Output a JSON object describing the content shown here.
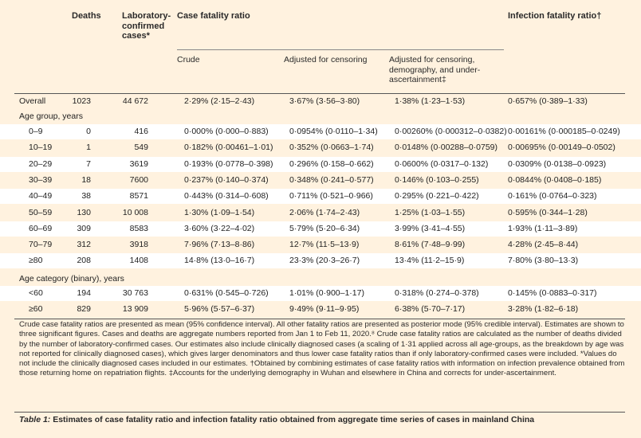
{
  "header": {
    "deaths": "Deaths",
    "lab_cases_1": "Laboratory-",
    "lab_cases_2": "confirmed",
    "lab_cases_3": "cases*",
    "cfr": "Case fatality ratio",
    "ifr": "Infection fatality ratio†",
    "crude": "Crude",
    "adj_censor": "Adjusted for censoring",
    "adj_full_1": "Adjusted for censoring,",
    "adj_full_2": "demography, and under-",
    "adj_full_3": "ascertainment‡"
  },
  "overall": {
    "label": "Overall",
    "deaths": "1023",
    "cases": "44 672",
    "crude": "2·29% (2·15–2·43)",
    "adj": "3·67% (3·56–3·80)",
    "adj_full": "1·38% (1·23–1·53)",
    "ifr": "0·657% (0·389–1·33)"
  },
  "age_group_heading": "Age group, years",
  "age_rows": [
    {
      "label": "0–9",
      "deaths": "0",
      "cases": "416",
      "crude": "0·000% (0·000–0·883)",
      "adj": "0·0954% (0·0110–1·34)",
      "adj_full": "0·00260% (0·000312–0·0382)",
      "ifr": "0·00161% (0·000185–0·0249)"
    },
    {
      "label": "10–19",
      "deaths": "1",
      "cases": "549",
      "crude": "0·182% (0·00461–1·01)",
      "adj": "0·352% (0·0663–1·74)",
      "adj_full": "0·0148% (0·00288–0·0759)",
      "ifr": "0·00695% (0·00149–0·0502)"
    },
    {
      "label": "20–29",
      "deaths": "7",
      "cases": "3619",
      "crude": "0·193% (0·0778–0·398)",
      "adj": "0·296% (0·158–0·662)",
      "adj_full": "0·0600% (0·0317–0·132)",
      "ifr": "0·0309% (0·0138–0·0923)"
    },
    {
      "label": "30–39",
      "deaths": "18",
      "cases": "7600",
      "crude": "0·237% (0·140–0·374)",
      "adj": "0·348% (0·241–0·577)",
      "adj_full": "0·146% (0·103–0·255)",
      "ifr": "0·0844% (0·0408–0·185)"
    },
    {
      "label": "40–49",
      "deaths": "38",
      "cases": "8571",
      "crude": "0·443% (0·314–0·608)",
      "adj": "0·711% (0·521–0·966)",
      "adj_full": "0·295% (0·221–0·422)",
      "ifr": "0·161% (0·0764–0·323)"
    },
    {
      "label": "50–59",
      "deaths": "130",
      "cases": "10 008",
      "crude": "1·30% (1·09–1·54)",
      "adj": "2·06% (1·74–2·43)",
      "adj_full": "1·25% (1·03–1·55)",
      "ifr": "0·595% (0·344–1·28)"
    },
    {
      "label": "60–69",
      "deaths": "309",
      "cases": "8583",
      "crude": "3·60% (3·22–4·02)",
      "adj": "5·79% (5·20–6·34)",
      "adj_full": "3·99% (3·41–4·55)",
      "ifr": "1·93% (1·11–3·89)"
    },
    {
      "label": "70–79",
      "deaths": "312",
      "cases": "3918",
      "crude": "7·96% (7·13–8·86)",
      "adj": "12·7% (11·5–13·9)",
      "adj_full": "8·61% (7·48–9·99)",
      "ifr": "4·28% (2·45–8·44)"
    },
    {
      "label": "≥80",
      "deaths": "208",
      "cases": "1408",
      "crude": "14·8% (13·0–16·7)",
      "adj": "23·3% (20·3–26·7)",
      "adj_full": "13·4% (11·2–15·9)",
      "ifr": "7·80% (3·80–13·3)"
    }
  ],
  "binary_heading": "Age category (binary), years",
  "binary_rows": [
    {
      "label": "<60",
      "deaths": "194",
      "cases": "30 763",
      "crude": "0·631% (0·545–0·726)",
      "adj": "1·01% (0·900–1·17)",
      "adj_full": "0·318% (0·274–0·378)",
      "ifr": "0·145% (0·0883–0·317)"
    },
    {
      "label": "≥60",
      "deaths": "829",
      "cases": "13 909",
      "crude": "5·96% (5·57–6·37)",
      "adj": "9·49% (9·11–9·95)",
      "adj_full": "6·38% (5·70–7·17)",
      "ifr": "3·28% (1·82–6·18)"
    }
  ],
  "footnote": "Crude case fatality ratios are presented as mean (95% confidence interval). All other fatality ratios are presented as posterior mode (95% credible interval). Estimates are shown to three significant figures. Cases and deaths are aggregate numbers reported from Jan 1 to Feb 11, 2020.⁸ Crude case fatality ratios are calculated as the number of deaths divided by the number of laboratory-confirmed cases. Our estimates also include clinically diagnosed cases (a scaling of 1·31 applied across all age-groups, as the breakdown by age was not reported for clinically diagnosed cases), which gives larger denominators and thus lower case fatality ratios than if only laboratory-confirmed cases were included. *Values do not include the clinically diagnosed cases included in our estimates. †Obtained by combining estimates of case fatality ratios with information on infection prevalence obtained from those returning home on repatriation flights. ‡Accounts for the underlying demography in Wuhan and elsewhere in China and corrects for under-ascertainment.",
  "caption_label": "Table 1:",
  "caption_text": "Estimates of case fatality ratio and infection fatality ratio obtained from aggregate time series of cases in mainland China"
}
